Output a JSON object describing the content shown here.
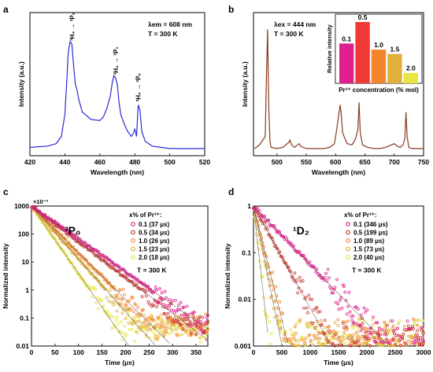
{
  "chart_data": [
    {
      "panel_label": "a",
      "type": "line",
      "xlabel": "Wavelength (nm)",
      "ylabel": "Intensity (a.u.)",
      "xlim": [
        420,
        520
      ],
      "xticks": [
        420,
        440,
        460,
        480,
        500,
        520
      ],
      "info": [
        "λem = 608 nm",
        "T = 300 K"
      ],
      "line_color": "#2b2bd6",
      "peak_labels": [
        {
          "text": "³H₄ → ³P₂",
          "x": 444
        },
        {
          "text": "³H₄ → ³P₁",
          "x": 469
        },
        {
          "text": "³H₄ → ³P₀",
          "x": 482
        }
      ],
      "series": [
        {
          "x": [
            420,
            430,
            435,
            438,
            440,
            441,
            442,
            443,
            444,
            445,
            446,
            447,
            448,
            450,
            455,
            460,
            462,
            464,
            466,
            467,
            468,
            469,
            470,
            471,
            472,
            474,
            476,
            478,
            479,
            480,
            481,
            482,
            483,
            484,
            486,
            490,
            495,
            500,
            510,
            520
          ],
          "y": [
            0.03,
            0.04,
            0.06,
            0.12,
            0.3,
            0.55,
            0.82,
            0.9,
            0.88,
            0.7,
            0.55,
            0.5,
            0.42,
            0.32,
            0.26,
            0.25,
            0.28,
            0.35,
            0.45,
            0.55,
            0.62,
            0.6,
            0.55,
            0.4,
            0.3,
            0.22,
            0.16,
            0.12,
            0.14,
            0.18,
            0.12,
            0.38,
            0.33,
            0.16,
            0.08,
            0.04,
            0.03,
            0.02,
            0.02,
            0.02
          ]
        }
      ]
    },
    {
      "panel_label": "b",
      "type": "line",
      "xlabel": "Wavelength (nm)",
      "ylabel": "Intensity (a.u.)",
      "xlim": [
        460,
        750
      ],
      "xticks": [
        500,
        550,
        600,
        650,
        700,
        750
      ],
      "info": [
        "λex = 444 nm",
        "T = 300 K"
      ],
      "line_color": "#8b3a1e",
      "series": [
        {
          "x": [
            462,
            470,
            476,
            480,
            482,
            484,
            486,
            488,
            490,
            500,
            510,
            520,
            522,
            525,
            530,
            535,
            538,
            540,
            550,
            560,
            570,
            580,
            590,
            598,
            602,
            606,
            608,
            610,
            612,
            616,
            620,
            628,
            634,
            638,
            640,
            642,
            646,
            655,
            665,
            675,
            685,
            690,
            695,
            700,
            705,
            710,
            715,
            718,
            720,
            722,
            725,
            730,
            740,
            750
          ],
          "y": [
            0.02,
            0.05,
            0.09,
            0.12,
            0.6,
            1.0,
            0.35,
            0.08,
            0.03,
            0.02,
            0.03,
            0.07,
            0.09,
            0.05,
            0.03,
            0.05,
            0.06,
            0.04,
            0.02,
            0.02,
            0.02,
            0.02,
            0.03,
            0.06,
            0.18,
            0.32,
            0.38,
            0.28,
            0.15,
            0.1,
            0.06,
            0.05,
            0.1,
            0.18,
            0.4,
            0.15,
            0.05,
            0.03,
            0.02,
            0.02,
            0.03,
            0.04,
            0.05,
            0.06,
            0.04,
            0.03,
            0.05,
            0.1,
            0.32,
            0.12,
            0.03,
            0.02,
            0.02,
            0.02
          ]
        }
      ],
      "inset": {
        "type": "bar",
        "ylabel": "Relative intensity",
        "xlabel": "Pr³⁺ concentration (% mol)",
        "categories": [
          "0.1",
          "0.5",
          "1.0",
          "1.5",
          "2.0"
        ],
        "values": [
          0.65,
          1.0,
          0.55,
          0.48,
          0.17
        ],
        "colors": [
          "#e0208c",
          "#f03a36",
          "#f2852e",
          "#e0b13a",
          "#e8e544"
        ]
      }
    },
    {
      "panel_label": "c",
      "type": "scatter",
      "title": "³P₀",
      "xlabel": "Time (μs)",
      "ylabel": "Normalized intensity",
      "y_multiplier": "×10⁻³",
      "y_scale": "log",
      "ylim": [
        0.01,
        1000
      ],
      "yticks": [
        0.01,
        0.1,
        1,
        10,
        100,
        1000
      ],
      "xlim": [
        0,
        375
      ],
      "xticks": [
        0,
        50,
        100,
        150,
        200,
        250,
        300,
        350
      ],
      "legend_title": "x% of Pr³⁺:",
      "condition": "T = 300 K",
      "series": [
        {
          "name": "0.1 (37 μs)",
          "tau": 37,
          "color": "#e0208c"
        },
        {
          "name": "0.5 (34 μs)",
          "tau": 34,
          "color": "#c93a32"
        },
        {
          "name": "1.0 (26 μs)",
          "tau": 26,
          "color": "#f2852e"
        },
        {
          "name": "1.5 (23 μs)",
          "tau": 23,
          "color": "#e0b13a"
        },
        {
          "name": "2.0 (18 μs)",
          "tau": 18,
          "color": "#e8e544"
        }
      ]
    },
    {
      "panel_label": "d",
      "type": "scatter",
      "title": "¹D₂",
      "xlabel": "Time (μs)",
      "ylabel": "Normalized intensity",
      "y_scale": "log",
      "ylim": [
        0.001,
        1
      ],
      "yticks": [
        0.001,
        0.01,
        0.1,
        1
      ],
      "xlim": [
        0,
        3000
      ],
      "xticks": [
        0,
        500,
        1000,
        1500,
        2000,
        2500,
        3000
      ],
      "legend_title": "x% of Pr³⁺:",
      "condition": "T = 300 K",
      "series": [
        {
          "name": "0.1 (346 μs)",
          "tau": 346,
          "color": "#e0208c"
        },
        {
          "name": "0.5 (199 μs)",
          "tau": 199,
          "color": "#c93a32"
        },
        {
          "name": "1.0 (89 μs)",
          "tau": 89,
          "color": "#f2852e"
        },
        {
          "name": "1.5 (73 μs)",
          "tau": 73,
          "color": "#e0b13a"
        },
        {
          "name": "2.0 (40 μs)",
          "tau": 40,
          "color": "#e8e544"
        }
      ]
    }
  ]
}
